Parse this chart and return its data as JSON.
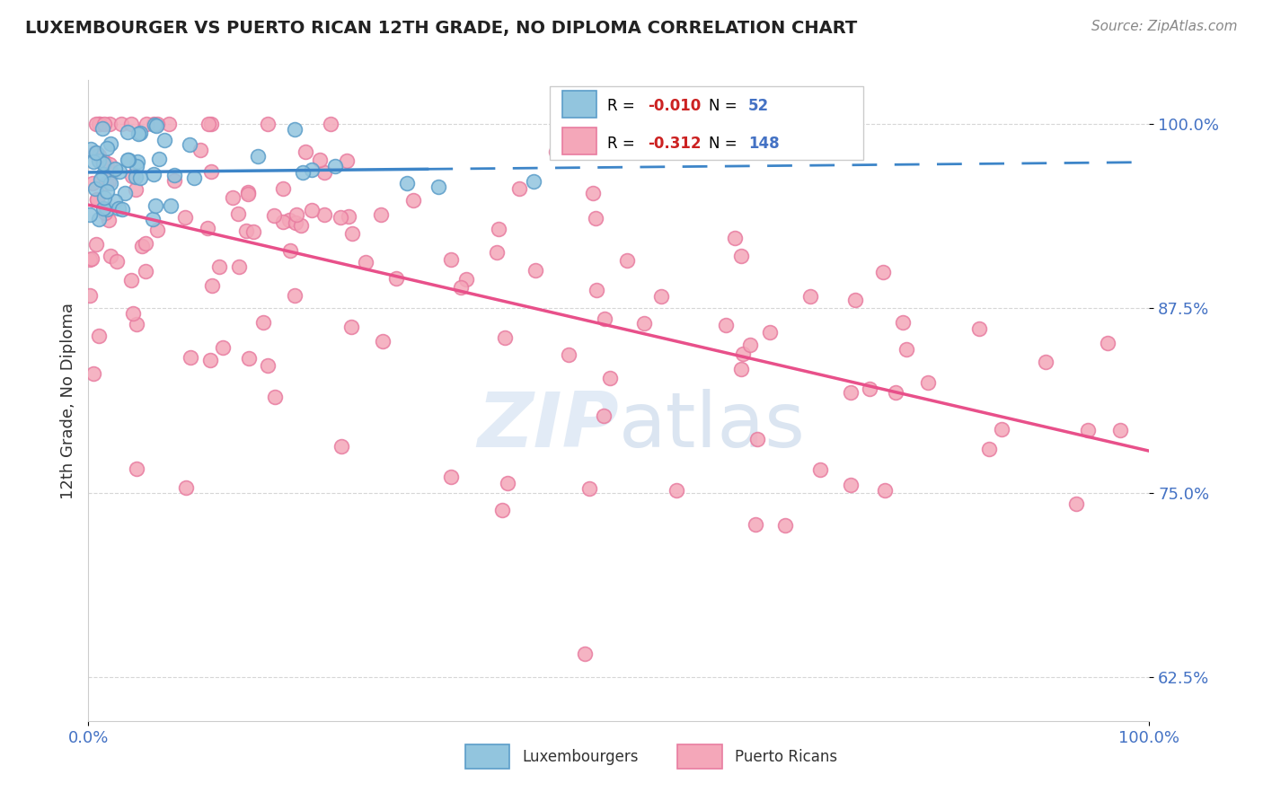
{
  "title": "LUXEMBOURGER VS PUERTO RICAN 12TH GRADE, NO DIPLOMA CORRELATION CHART",
  "source": "Source: ZipAtlas.com",
  "ylabel": "12th Grade, No Diploma",
  "legend_label1": "Luxembourgers",
  "legend_label2": "Puerto Ricans",
  "R1": "-0.010",
  "N1": "52",
  "R2": "-0.312",
  "N2": "148",
  "blue_scatter_color": "#92c5de",
  "blue_edge_color": "#5b9dc9",
  "pink_scatter_color": "#f4a7b9",
  "pink_edge_color": "#e87ca0",
  "trend_blue": "#3d85c8",
  "trend_pink": "#e8508a",
  "watermark_color": "#d0dff0",
  "ytick_color": "#4472c4",
  "xtick_color": "#4472c4",
  "grid_color": "#cccccc",
  "spine_color": "#cccccc",
  "title_color": "#222222",
  "source_color": "#888888",
  "ylabel_color": "#333333",
  "seed": 1234,
  "xlim": [
    0.0,
    1.0
  ],
  "ylim": [
    0.595,
    1.03
  ],
  "yticks": [
    0.625,
    0.75,
    0.875,
    1.0
  ],
  "ytick_labels": [
    "62.5%",
    "75.0%",
    "87.5%",
    "100.0%"
  ]
}
